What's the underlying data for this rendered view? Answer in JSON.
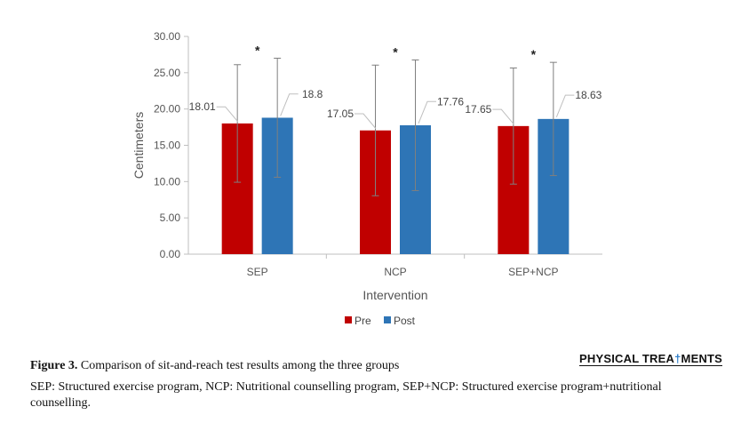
{
  "chart_data": {
    "type": "bar",
    "categories": [
      "SEP",
      "NCP",
      "SEP+NCP"
    ],
    "series": [
      {
        "name": "Pre",
        "color": "#c00000",
        "values": [
          18.01,
          17.05,
          17.65
        ],
        "error": [
          8.1,
          9.0,
          8.0
        ],
        "labels": [
          "18.01",
          "17.05",
          "17.65"
        ]
      },
      {
        "name": "Post",
        "color": "#2e75b6",
        "values": [
          18.8,
          17.76,
          18.63
        ],
        "error": [
          8.2,
          9.0,
          7.8
        ],
        "labels": [
          "18.8",
          "17.76",
          "18.63"
        ]
      }
    ],
    "significance": [
      "*",
      "*",
      "*"
    ],
    "xlabel": "Intervention",
    "ylabel": "Centimeters",
    "ylim": [
      0,
      30
    ],
    "yticks": [
      "0.00",
      "5.00",
      "10.00",
      "15.00",
      "20.00",
      "25.00",
      "30.00"
    ],
    "legend_position": "bottom",
    "grid": false
  },
  "caption": {
    "figure_label": "Figure 3.",
    "title": "Comparison of sit-and-reach test results among the three groups",
    "note": "SEP: Structured exercise program, NCP: Nutritional counselling program, SEP+NCP: Structured exercise program+nutritional counselling."
  },
  "logo": {
    "text_before": "PHYSICAL TREA",
    "mark": "†",
    "text_after": "MENTS"
  }
}
